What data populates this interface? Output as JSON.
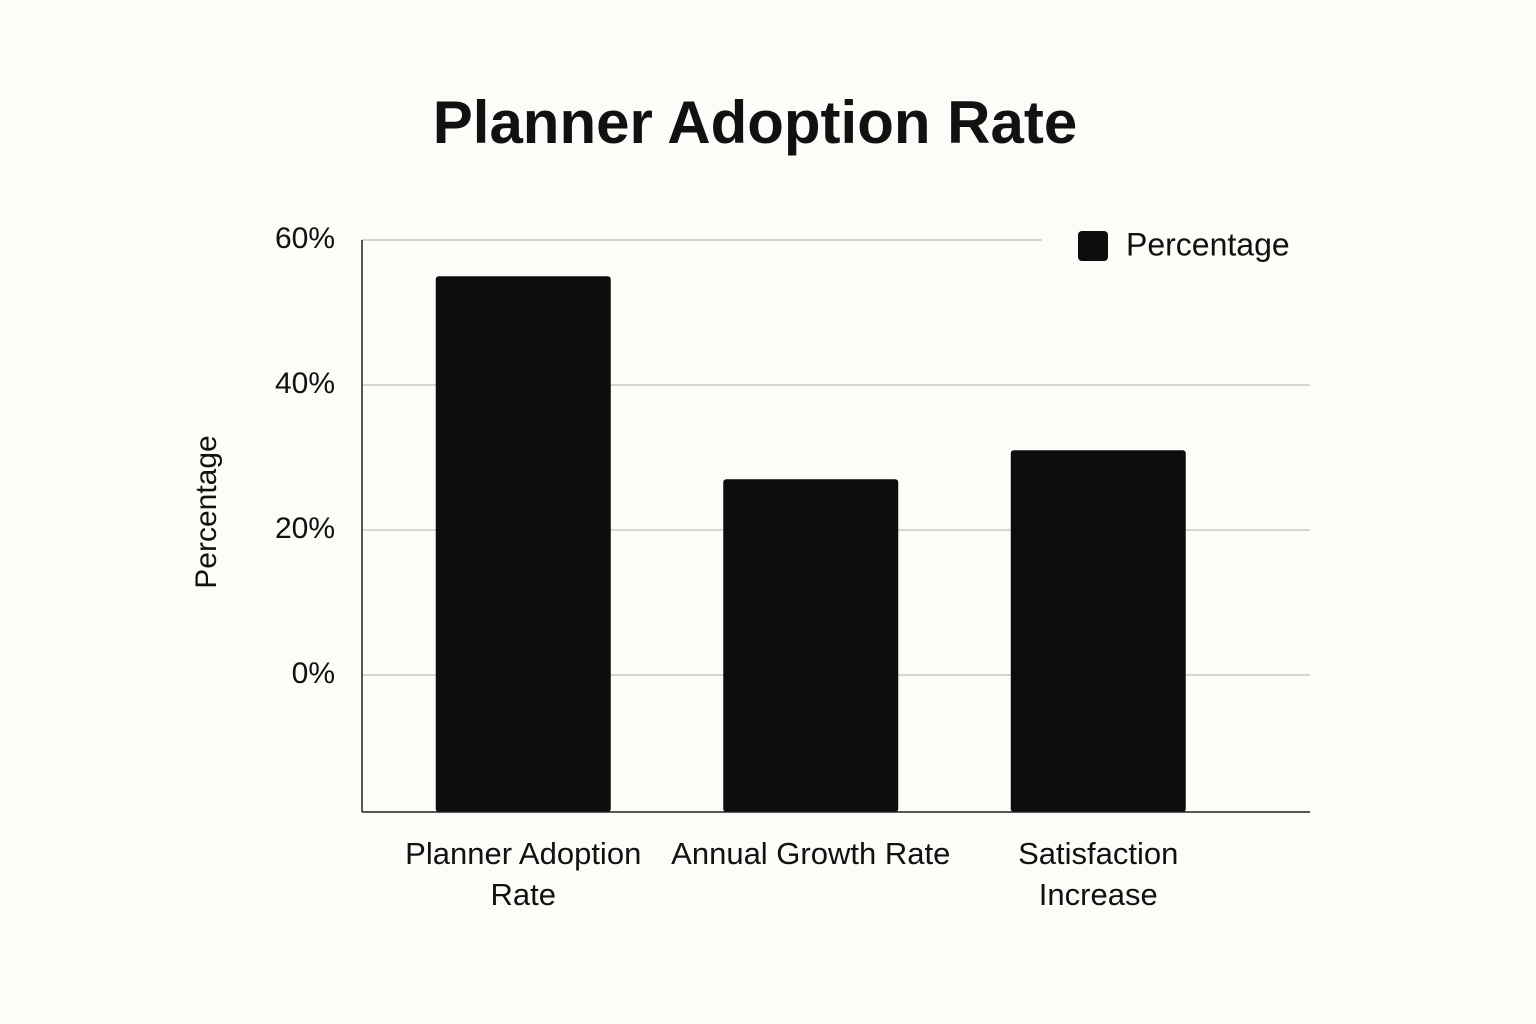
{
  "chart_data": {
    "type": "bar",
    "title": "Planner Adoption Rate",
    "y_label": "Percentage",
    "categories": [
      "Planner Adoption Rate",
      "Annual Growth Rate",
      "Satisfaction Increase"
    ],
    "series": [
      {
        "name": "Percentage",
        "color": "#0d0d0d",
        "values": [
          55,
          27,
          31
        ]
      }
    ],
    "ylim": [
      -18.9,
      60
    ],
    "yticks": [
      {
        "value": 0,
        "label": "0%"
      },
      {
        "value": 20,
        "label": "20%"
      },
      {
        "value": 40,
        "label": "40%"
      },
      {
        "value": 60,
        "label": "60%"
      }
    ],
    "grid": true,
    "legend": "top-right"
  }
}
